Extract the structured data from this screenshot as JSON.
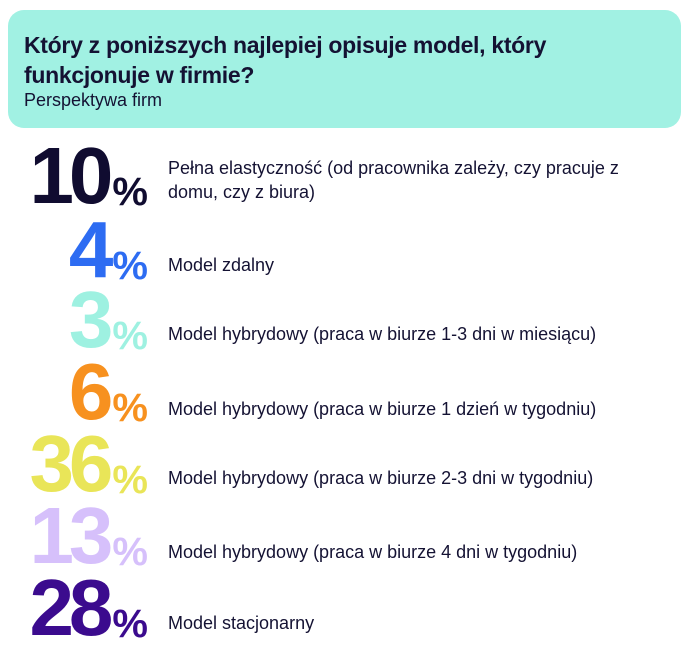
{
  "header": {
    "title": "Który z poniższych najlepiej opisuje model, który funkcjonuje w firmie?",
    "subtitle": "Perspektywa firm"
  },
  "chart_data": {
    "type": "table",
    "title": "Który z poniższych najlepiej opisuje model, który funkcjonuje w firmie?",
    "subtitle": "Perspektywa firm",
    "items": [
      {
        "value": "10",
        "unit": "%",
        "label": "Pełna elastyczność (od pracownika zależy, czy pracuje z domu, czy z biura)",
        "color": "#100c30"
      },
      {
        "value": "4",
        "unit": "%",
        "label": "Model zdalny",
        "color": "#2d6cf2"
      },
      {
        "value": "3",
        "unit": "%",
        "label": "Model hybrydowy (praca w biurze 1-3 dni w miesiącu)",
        "color": "#9ef1e1"
      },
      {
        "value": "6",
        "unit": "%",
        "label": "Model hybrydowy (praca w biurze 1 dzień w tygodniu)",
        "color": "#f7911f"
      },
      {
        "value": "36",
        "unit": "%",
        "label": "Model hybrydowy (praca w biurze 2-3 dni w tygodniu)",
        "color": "#e9e558"
      },
      {
        "value": "13",
        "unit": "%",
        "label": "Model hybrydowy (praca w biurze 4 dni w tygodniu)",
        "color": "#d6c0fb"
      },
      {
        "value": "28",
        "unit": "%",
        "label": "Model stacjonarny",
        "color": "#3b0b8e"
      }
    ]
  }
}
